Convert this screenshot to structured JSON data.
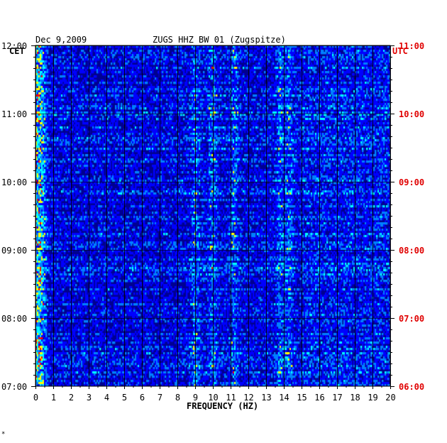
{
  "header": {
    "date": "Dec 9,2009",
    "station": "ZUGS HHZ BW 01 (Zugspitze)",
    "left_zone": "CET",
    "right_zone": "UTC"
  },
  "footer_mark": "*",
  "chart_data": {
    "type": "heatmap",
    "title": "ZUGS HHZ BW 01 (Zugspitze)",
    "date": "Dec 9,2009",
    "xlabel": "FREQUENCY (HZ)",
    "xlim": [
      0,
      20
    ],
    "x_ticks": [
      0,
      1,
      2,
      3,
      4,
      5,
      6,
      7,
      8,
      9,
      10,
      11,
      12,
      13,
      14,
      15,
      16,
      17,
      18,
      19,
      20
    ],
    "x_tick_labels": [
      "0",
      "1",
      "2",
      "3",
      "4",
      "5",
      "6",
      "7",
      "8",
      "9",
      "10",
      "11",
      "12",
      "13",
      "14",
      "15",
      "16",
      "17",
      "18",
      "19",
      "20"
    ],
    "left_axis_label": "CET",
    "right_axis_label": "UTC",
    "cet_ticks": [
      "07:00",
      "08:00",
      "09:00",
      "10:00",
      "11:00",
      "12:00"
    ],
    "utc_ticks": [
      "06:00",
      "07:00",
      "08:00",
      "09:00",
      "10:00",
      "11:00"
    ],
    "time_range_cet_hours": [
      7.0,
      12.0
    ],
    "colormap": [
      "#00008b",
      "#0000ff",
      "#0080ff",
      "#00ffff",
      "#ffff00",
      "#ff0000"
    ],
    "background_color": "#000090",
    "grid": true,
    "dominant_bands_hz": [
      0.3,
      9.0,
      10.0,
      11.2,
      13.8,
      14.3
    ]
  }
}
